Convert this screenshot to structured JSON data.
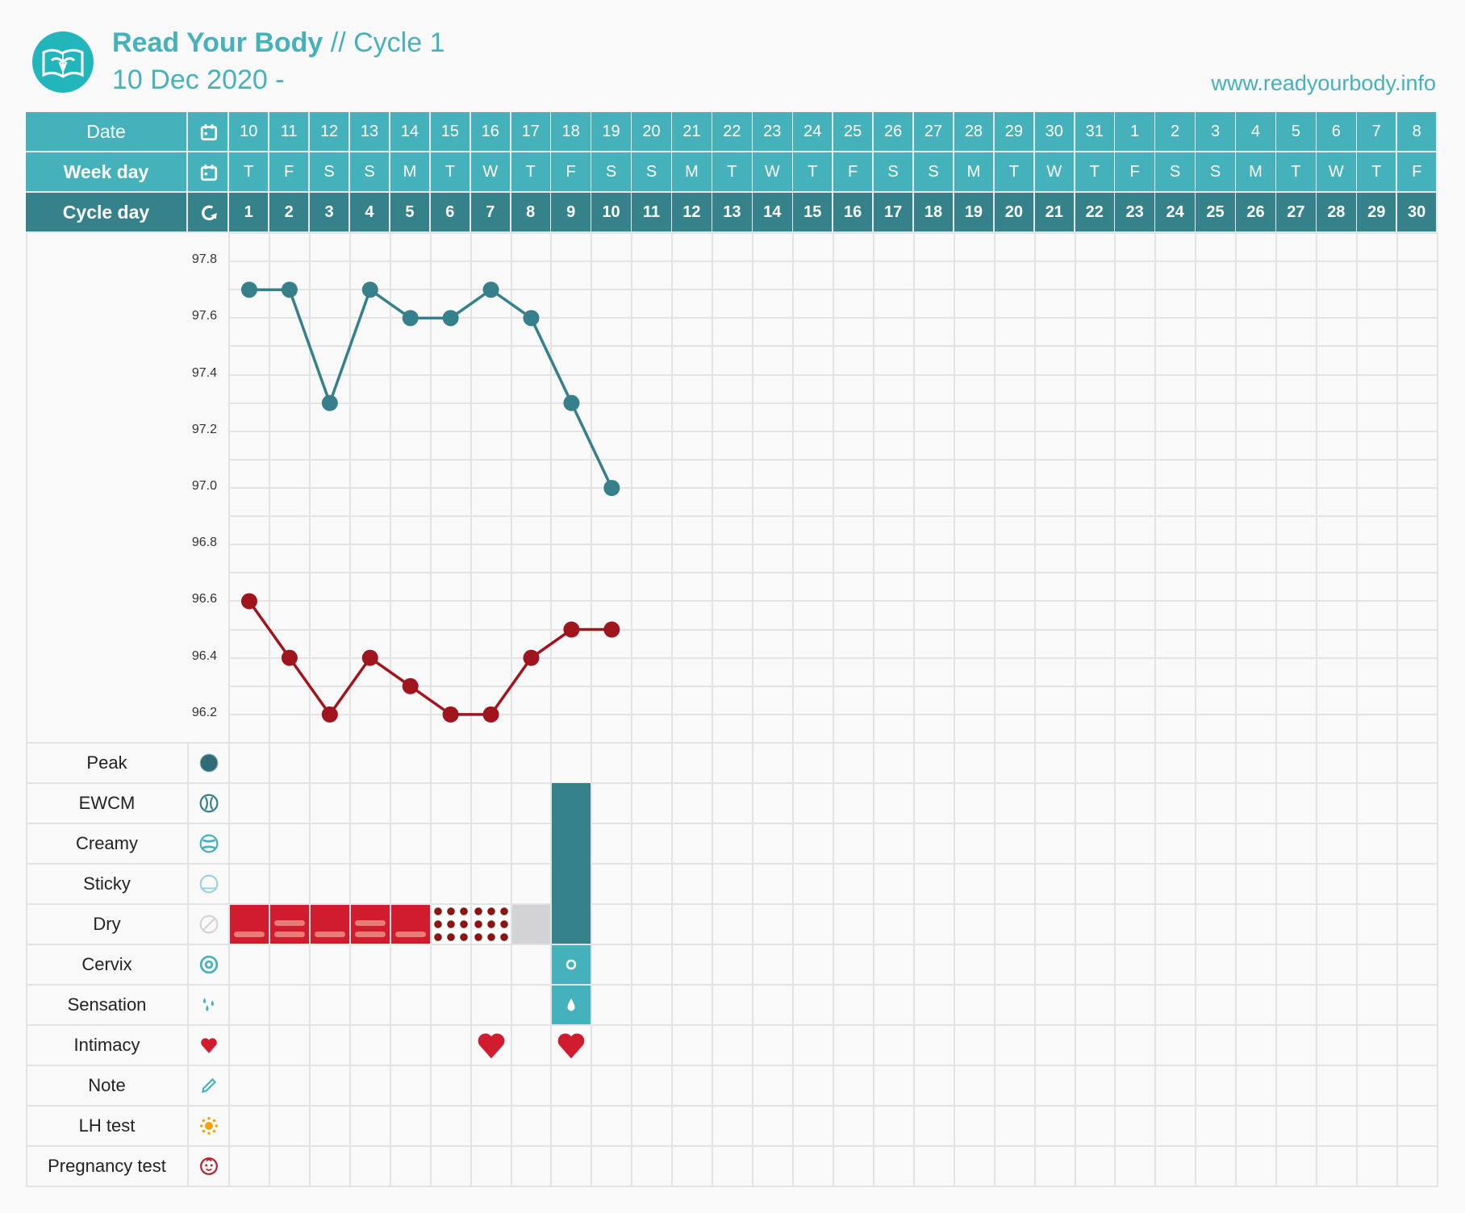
{
  "header": {
    "brand": "Read Your Body",
    "cycle_label": " // Cycle 1",
    "date_range": "10 Dec 2020 -",
    "url": "www.readyourbody.info"
  },
  "colors": {
    "teal": "#45b1bb",
    "dark_teal": "#35828b",
    "temp_line": "#35808a",
    "temp_line_2": "#a0141e",
    "period": "#d11c2f",
    "period_bar": "#e87d77",
    "spotting": "#8b1414",
    "gray": "#d3d3d6",
    "heart": "#d11c2f"
  },
  "table": {
    "row_labels": {
      "date": "Date",
      "week_day": "Week day",
      "cycle_day": "Cycle day"
    },
    "dates": [
      "10",
      "11",
      "12",
      "13",
      "14",
      "15",
      "16",
      "17",
      "18",
      "19",
      "20",
      "21",
      "22",
      "23",
      "24",
      "25",
      "26",
      "27",
      "28",
      "29",
      "30",
      "31",
      "1",
      "2",
      "3",
      "4",
      "5",
      "6",
      "7",
      "8"
    ],
    "week_days": [
      "T",
      "F",
      "S",
      "S",
      "M",
      "T",
      "W",
      "T",
      "F",
      "S",
      "S",
      "M",
      "T",
      "W",
      "T",
      "F",
      "S",
      "S",
      "M",
      "T",
      "W",
      "T",
      "F",
      "S",
      "S",
      "M",
      "T",
      "W",
      "T",
      "F"
    ],
    "cycle_days": [
      "1",
      "2",
      "3",
      "4",
      "5",
      "6",
      "7",
      "8",
      "9",
      "10",
      "11",
      "12",
      "13",
      "14",
      "15",
      "16",
      "17",
      "18",
      "19",
      "20",
      "21",
      "22",
      "23",
      "24",
      "25",
      "26",
      "27",
      "28",
      "29",
      "30"
    ]
  },
  "chart_data": {
    "type": "line",
    "ylim": [
      96.1,
      97.9
    ],
    "y_tick_labels": [
      "97.8",
      "97.6",
      "97.4",
      "97.2",
      "97.0",
      "96.8",
      "96.6",
      "96.4",
      "96.2"
    ],
    "x": [
      1,
      2,
      3,
      4,
      5,
      6,
      7,
      8,
      9,
      10
    ],
    "series": [
      {
        "name": "temperature-upper",
        "color": "#35808a",
        "values": [
          97.7,
          97.7,
          97.3,
          97.7,
          97.6,
          97.6,
          97.7,
          97.6,
          97.3,
          97.0
        ]
      },
      {
        "name": "temperature-lower",
        "color": "#a0141e",
        "values": [
          96.6,
          96.4,
          96.2,
          96.4,
          96.3,
          96.2,
          96.2,
          96.4,
          96.5,
          96.5
        ]
      }
    ]
  },
  "observation_rows": [
    {
      "label": "Peak",
      "icon": "peak-icon"
    },
    {
      "label": "EWCM",
      "icon": "ewcm-icon"
    },
    {
      "label": "Creamy",
      "icon": "creamy-icon"
    },
    {
      "label": "Sticky",
      "icon": "sticky-icon"
    },
    {
      "label": "Dry",
      "icon": "dry-icon"
    },
    {
      "label": "Cervix",
      "icon": "cervix-icon"
    },
    {
      "label": "Sensation",
      "icon": "sensation-icon"
    },
    {
      "label": "Intimacy",
      "icon": "heart-icon"
    },
    {
      "label": "Note",
      "icon": "pencil-icon"
    },
    {
      "label": "LH test",
      "icon": "sun-icon"
    },
    {
      "label": "Pregnancy test",
      "icon": "baby-icon"
    }
  ],
  "observations": {
    "bleeding": {
      "1": "light",
      "2": "heavy",
      "3": "light",
      "4": "heavy",
      "5": "light",
      "6": "spotting",
      "7": "spotting",
      "8": "none"
    },
    "mucus": {
      "9": "ewcm"
    },
    "cervix": {
      "9": "open"
    },
    "sensation": {
      "9": "wet"
    },
    "intimacy": [
      7,
      9
    ]
  }
}
